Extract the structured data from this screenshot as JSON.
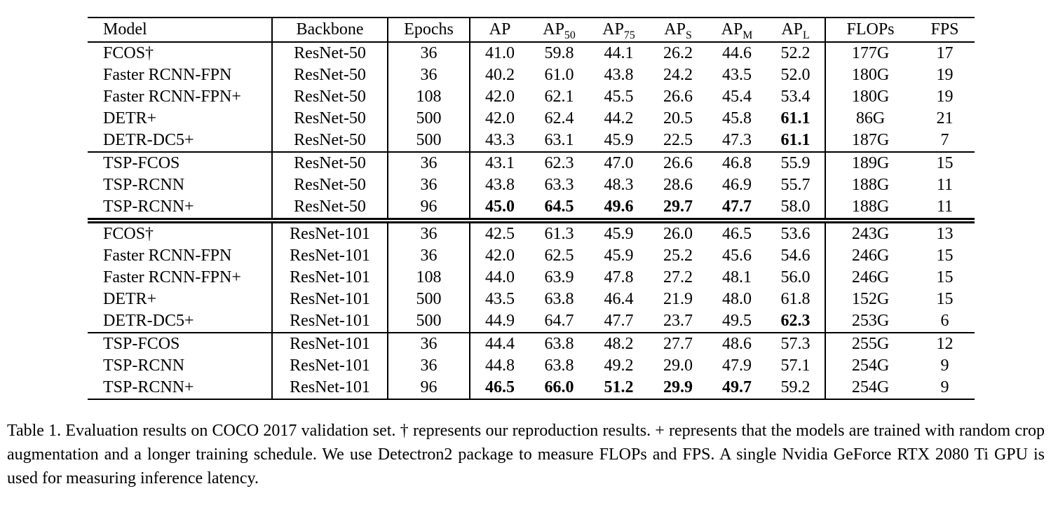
{
  "table": {
    "header": [
      {
        "text": "Model"
      },
      {
        "text": "Backbone"
      },
      {
        "text": "Epochs"
      },
      {
        "text": "AP"
      },
      {
        "text": "AP",
        "sub": "50"
      },
      {
        "text": "AP",
        "sub": "75"
      },
      {
        "text": "AP",
        "sub": "S"
      },
      {
        "text": "AP",
        "sub": "M"
      },
      {
        "text": "AP",
        "sub": "L"
      },
      {
        "text": "FLOPs"
      },
      {
        "text": "FPS"
      }
    ],
    "groups": [
      {
        "separator": "none",
        "rows": [
          {
            "cells": [
              "FCOS†",
              "ResNet-50",
              "36",
              "41.0",
              "59.8",
              "44.1",
              "26.2",
              "44.6",
              "52.2",
              "177G",
              "17"
            ],
            "bold": []
          },
          {
            "cells": [
              "Faster RCNN-FPN",
              "ResNet-50",
              "36",
              "40.2",
              "61.0",
              "43.8",
              "24.2",
              "43.5",
              "52.0",
              "180G",
              "19"
            ],
            "bold": []
          },
          {
            "cells": [
              "Faster RCNN-FPN+",
              "ResNet-50",
              "108",
              "42.0",
              "62.1",
              "45.5",
              "26.6",
              "45.4",
              "53.4",
              "180G",
              "19"
            ],
            "bold": []
          },
          {
            "cells": [
              "DETR+",
              "ResNet-50",
              "500",
              "42.0",
              "62.4",
              "44.2",
              "20.5",
              "45.8",
              "61.1",
              "86G",
              "21"
            ],
            "bold": [
              8
            ]
          },
          {
            "cells": [
              "DETR-DC5+",
              "ResNet-50",
              "500",
              "43.3",
              "63.1",
              "45.9",
              "22.5",
              "47.3",
              "61.1",
              "187G",
              "7"
            ],
            "bold": [
              8
            ]
          }
        ]
      },
      {
        "separator": "single",
        "rows": [
          {
            "cells": [
              "TSP-FCOS",
              "ResNet-50",
              "36",
              "43.1",
              "62.3",
              "47.0",
              "26.6",
              "46.8",
              "55.9",
              "189G",
              "15"
            ],
            "bold": []
          },
          {
            "cells": [
              "TSP-RCNN",
              "ResNet-50",
              "36",
              "43.8",
              "63.3",
              "48.3",
              "28.6",
              "46.9",
              "55.7",
              "188G",
              "11"
            ],
            "bold": []
          },
          {
            "cells": [
              "TSP-RCNN+",
              "ResNet-50",
              "96",
              "45.0",
              "64.5",
              "49.6",
              "29.7",
              "47.7",
              "58.0",
              "188G",
              "11"
            ],
            "bold": [
              3,
              4,
              5,
              6,
              7
            ]
          }
        ]
      },
      {
        "separator": "double",
        "rows": [
          {
            "cells": [
              "FCOS†",
              "ResNet-101",
              "36",
              "42.5",
              "61.3",
              "45.9",
              "26.0",
              "46.5",
              "53.6",
              "243G",
              "13"
            ],
            "bold": []
          },
          {
            "cells": [
              "Faster RCNN-FPN",
              "ResNet-101",
              "36",
              "42.0",
              "62.5",
              "45.9",
              "25.2",
              "45.6",
              "54.6",
              "246G",
              "15"
            ],
            "bold": []
          },
          {
            "cells": [
              "Faster RCNN-FPN+",
              "ResNet-101",
              "108",
              "44.0",
              "63.9",
              "47.8",
              "27.2",
              "48.1",
              "56.0",
              "246G",
              "15"
            ],
            "bold": []
          },
          {
            "cells": [
              "DETR+",
              "ResNet-101",
              "500",
              "43.5",
              "63.8",
              "46.4",
              "21.9",
              "48.0",
              "61.8",
              "152G",
              "15"
            ],
            "bold": []
          },
          {
            "cells": [
              "DETR-DC5+",
              "ResNet-101",
              "500",
              "44.9",
              "64.7",
              "47.7",
              "23.7",
              "49.5",
              "62.3",
              "253G",
              "6"
            ],
            "bold": [
              8
            ]
          }
        ]
      },
      {
        "separator": "single",
        "rows": [
          {
            "cells": [
              "TSP-FCOS",
              "ResNet-101",
              "36",
              "44.4",
              "63.8",
              "48.2",
              "27.7",
              "48.6",
              "57.3",
              "255G",
              "12"
            ],
            "bold": []
          },
          {
            "cells": [
              "TSP-RCNN",
              "ResNet-101",
              "36",
              "44.8",
              "63.8",
              "49.2",
              "29.0",
              "47.9",
              "57.1",
              "254G",
              "9"
            ],
            "bold": []
          },
          {
            "cells": [
              "TSP-RCNN+",
              "ResNet-101",
              "96",
              "46.5",
              "66.0",
              "51.2",
              "29.9",
              "49.7",
              "59.2",
              "254G",
              "9"
            ],
            "bold": [
              3,
              4,
              5,
              6,
              7
            ]
          }
        ]
      }
    ]
  },
  "caption": {
    "text": "Table 1. Evaluation results on COCO 2017 validation set. † represents our reproduction results. + represents that the models are trained with random crop augmentation and a longer training schedule. We use Detectron2 package to measure FLOPs and FPS. A single Nvidia GeForce RTX 2080 Ti GPU is used for measuring inference latency."
  }
}
